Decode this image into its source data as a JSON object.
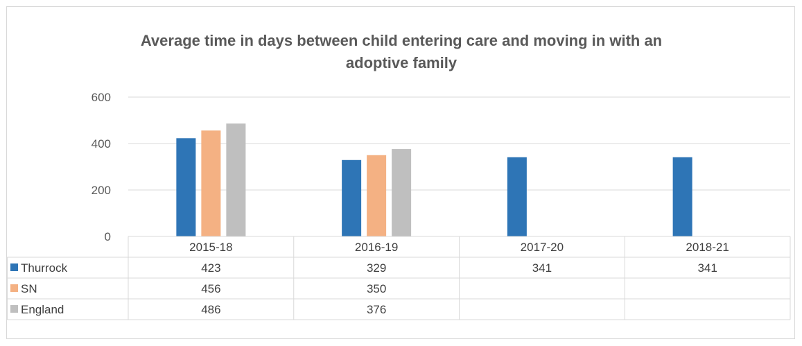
{
  "chart_data": {
    "type": "bar",
    "title": "Average time in days between child entering care and moving in with an adoptive family",
    "title_lines": [
      "Average time in days between child entering care and moving in with an",
      "adoptive family"
    ],
    "categories": [
      "2015-18",
      "2016-19",
      "2017-20",
      "2018-21"
    ],
    "series": [
      {
        "name": "Thurrock",
        "color": "#2e75b6",
        "values": [
          423,
          329,
          341,
          341
        ]
      },
      {
        "name": "SN",
        "color": "#f4b183",
        "values": [
          456,
          350,
          null,
          null
        ]
      },
      {
        "name": "England",
        "color": "#bfbfbf",
        "values": [
          486,
          376,
          null,
          null
        ]
      }
    ],
    "ylim": [
      0,
      600
    ],
    "yticks": [
      0,
      200,
      400,
      600
    ],
    "grid": true,
    "legend": "data-table",
    "xlabel": "",
    "ylabel": ""
  }
}
